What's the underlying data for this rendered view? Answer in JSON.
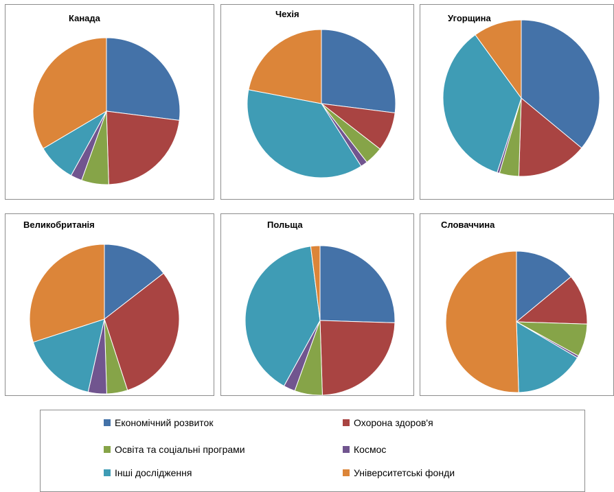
{
  "chart_data": {
    "type": "pie",
    "categories": [
      "Економічний розвиток",
      "Охорона здоров'я",
      "Освіта та соціальні програми",
      "Космос",
      "Інші дослідження",
      "Університетські фонди"
    ],
    "colors": [
      "#4472a8",
      "#a94442",
      "#86a448",
      "#71558f",
      "#3f9cb5",
      "#dc8539"
    ],
    "charts": [
      {
        "title": "Канада",
        "values": [
          27.0,
          22.5,
          6.0,
          2.5,
          8.5,
          33.5
        ]
      },
      {
        "title": "Чехія",
        "values": [
          27.0,
          8.5,
          4.0,
          1.5,
          37.0,
          22.0
        ]
      },
      {
        "title": "Угорщина",
        "values": [
          36.0,
          14.5,
          4.0,
          0.5,
          35.0,
          10.0
        ]
      },
      {
        "title": "Великобританія",
        "values": [
          14.5,
          30.5,
          4.5,
          4.0,
          16.5,
          30.0
        ]
      },
      {
        "title": "Польща",
        "values": [
          25.5,
          24.0,
          6.0,
          2.5,
          40.0,
          2.0
        ]
      },
      {
        "title": "Словаччина",
        "values": [
          14.0,
          11.5,
          7.5,
          0.5,
          16.0,
          50.5
        ]
      }
    ],
    "legend_position": "bottom"
  }
}
